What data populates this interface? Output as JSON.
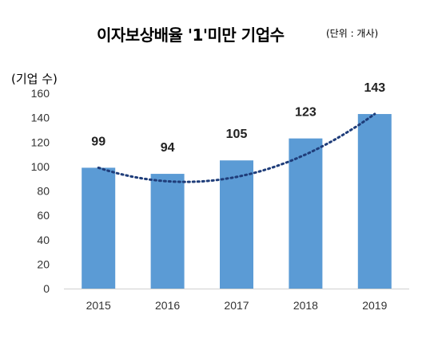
{
  "chart_data": {
    "type": "bar",
    "title": "이자보상배율 '1'미만 기업수",
    "unit_note": "(단위 : 개사)",
    "ylabel": "(기업 수)",
    "categories": [
      "2015",
      "2016",
      "2017",
      "2018",
      "2019"
    ],
    "values": [
      99,
      94,
      105,
      123,
      143
    ],
    "ylim": [
      0,
      160
    ],
    "yticks": [
      0,
      20,
      40,
      60,
      80,
      100,
      120,
      140,
      160
    ],
    "trendline": "dotted",
    "grid": false,
    "colors": {
      "bar": "#5b9bd5",
      "trend": "#1f3d7a"
    }
  }
}
